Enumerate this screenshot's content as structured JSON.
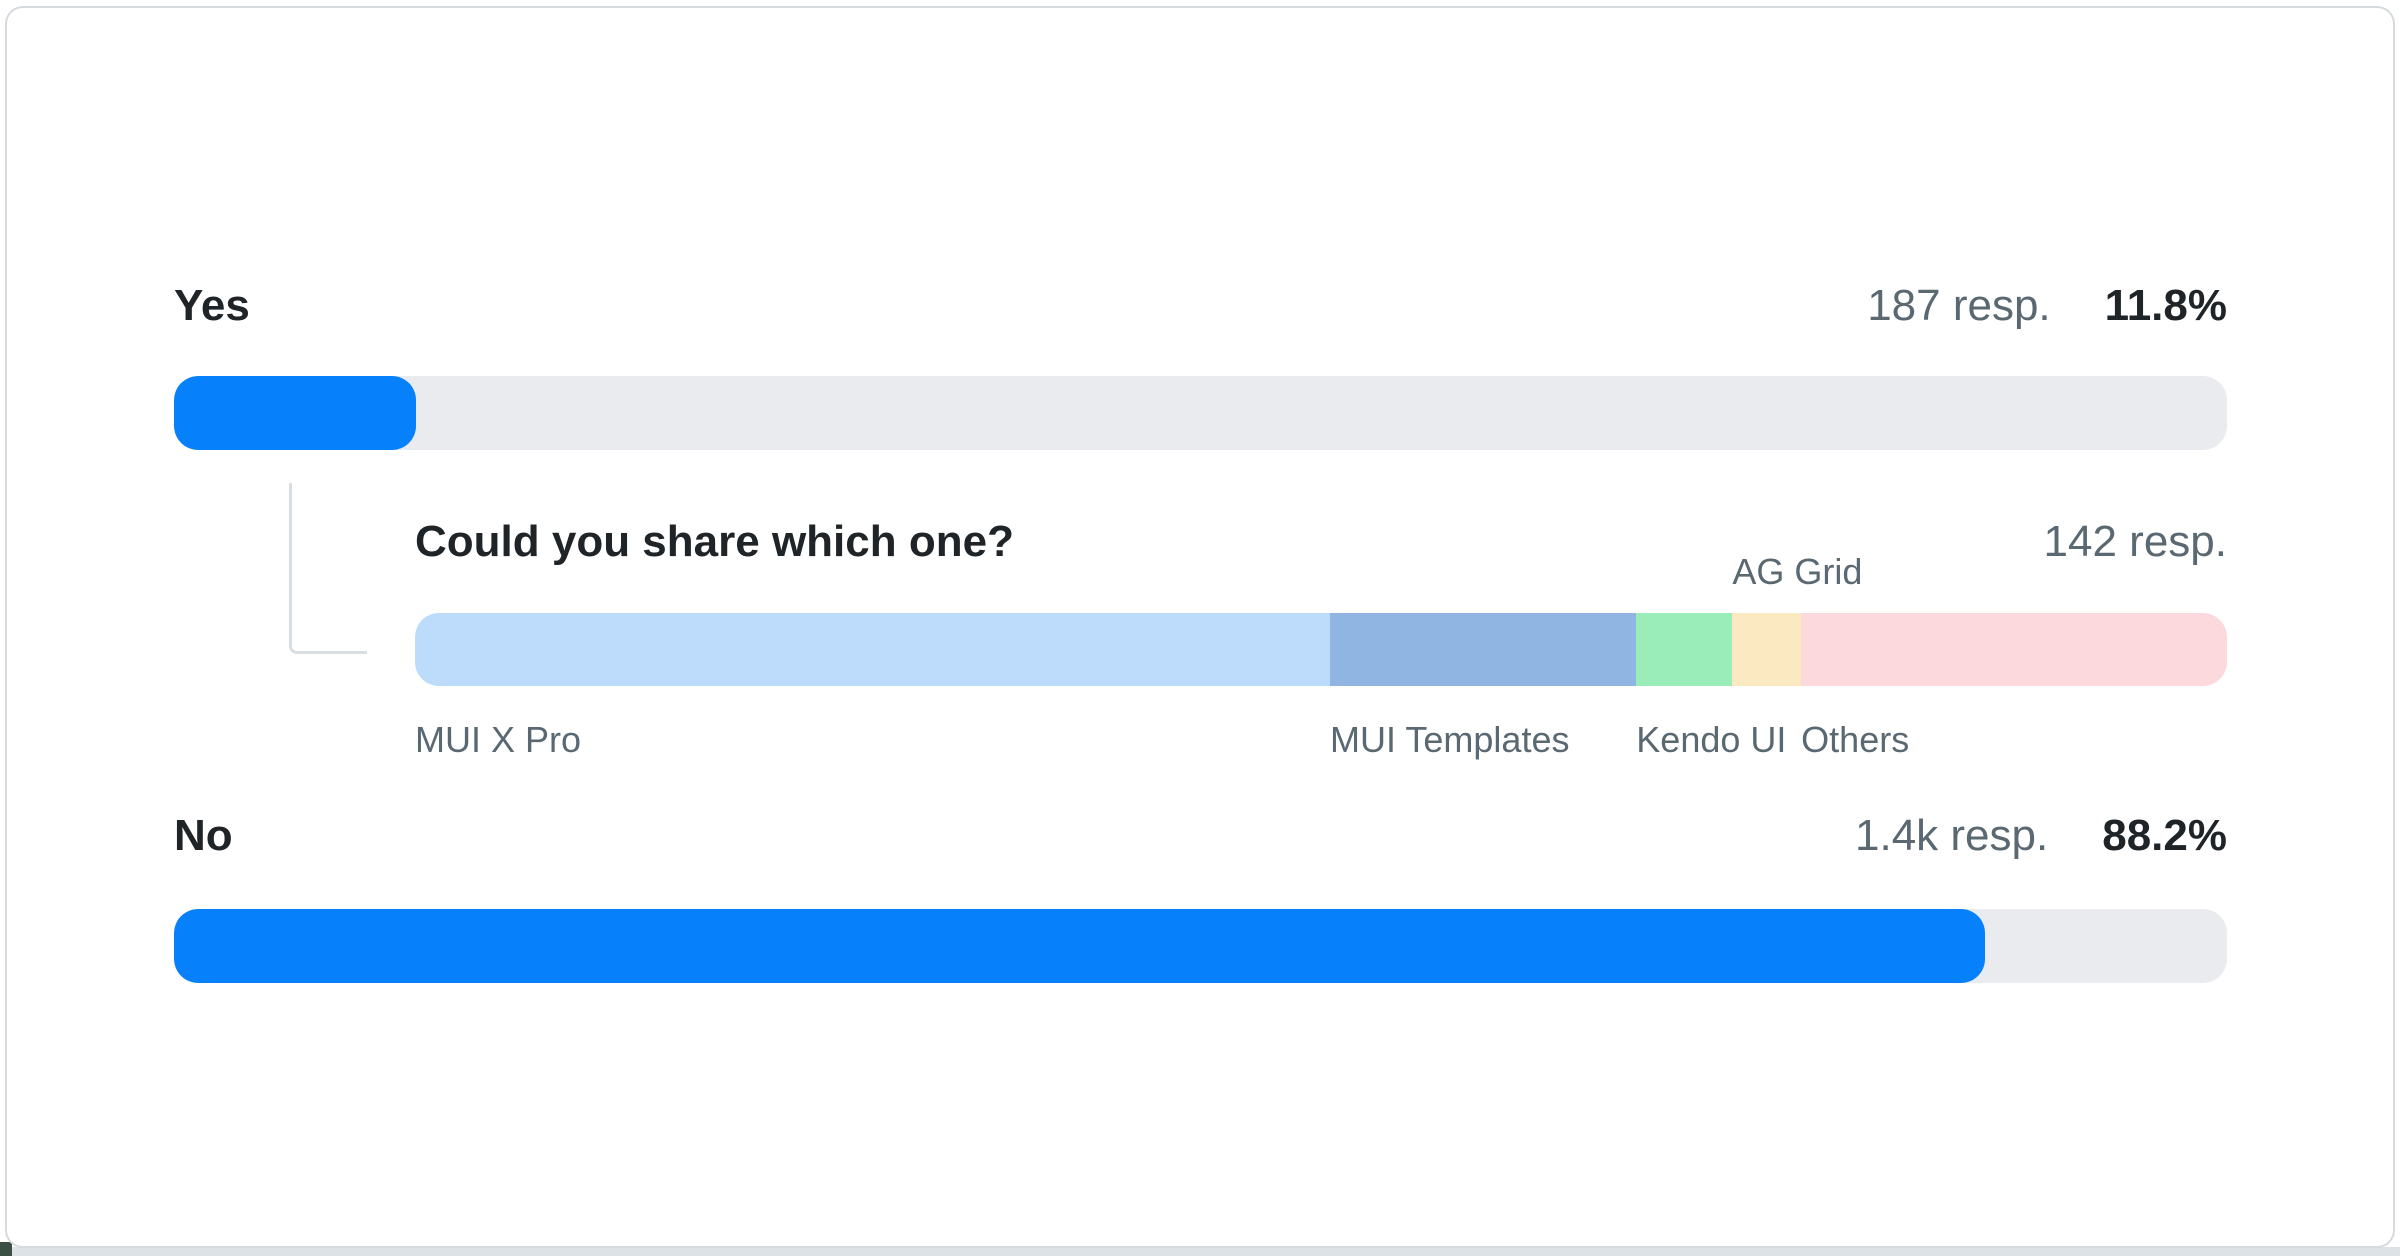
{
  "page": {
    "background": "#ffffff",
    "card_border_color": "#d5dade",
    "bottom_strip_color": "#dde2e6",
    "corner_peek_color": "#3c4f45"
  },
  "colors": {
    "accent_blue": "#0780fb",
    "track_gray": "#e9ebee",
    "text_dark": "#1f2428",
    "text_gray": "#5a6872",
    "connector_gray": "#d9dee3"
  },
  "rows": [
    {
      "label": "Yes",
      "responses": "187 resp.",
      "percent_label": "11.8%"
    },
    {
      "label": "No",
      "responses": "1.4k resp.",
      "percent_label": "88.2%"
    }
  ],
  "subquestion": {
    "title": "Could you share which one?",
    "responses": "142 resp."
  },
  "chart_data": {
    "type": "bar",
    "orientation": "horizontal",
    "title": "",
    "categories": [
      "Yes",
      "No"
    ],
    "values": [
      11.8,
      88.2
    ],
    "value_labels": [
      "11.8%",
      "88.2%"
    ],
    "response_counts": [
      "187 resp.",
      "1.4k resp."
    ],
    "xlim": [
      0,
      100
    ],
    "bar_color": "#0780fb",
    "track_color": "#e9ebee",
    "grid": false,
    "legend": false,
    "subchart": {
      "type": "stacked-bar",
      "question": "Could you share which one?",
      "responses": "142 resp.",
      "segments": [
        {
          "label": "MUI X Pro",
          "percent": 50.5,
          "color": "#bddcfb",
          "label_pos": "below"
        },
        {
          "label": "MUI Templates",
          "percent": 16.9,
          "color": "#90b5e2",
          "label_pos": "below"
        },
        {
          "label": "Kendo UI",
          "percent": 5.3,
          "color": "#9aecb8",
          "label_pos": "below"
        },
        {
          "label": "AG Grid",
          "percent": 3.8,
          "color": "#fbe9c1",
          "label_pos": "above"
        },
        {
          "label": "Others",
          "percent": 23.5,
          "color": "#fcd9dd",
          "label_pos": "below"
        }
      ]
    }
  }
}
